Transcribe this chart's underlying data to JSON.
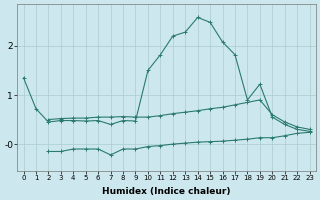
{
  "xlabel": "Humidex (Indice chaleur)",
  "background_color": "#cce8ee",
  "grid_color": "#aacccc",
  "line_color": "#2a7a6e",
  "x": [
    0,
    1,
    2,
    3,
    4,
    5,
    6,
    7,
    8,
    9,
    10,
    11,
    12,
    13,
    14,
    15,
    16,
    17,
    18,
    19,
    20,
    21,
    22,
    23
  ],
  "y_main": [
    1.35,
    0.72,
    0.45,
    0.48,
    0.48,
    0.47,
    0.48,
    0.4,
    0.48,
    0.47,
    1.5,
    1.82,
    2.2,
    2.28,
    2.58,
    2.48,
    2.08,
    1.82,
    0.9,
    1.22,
    0.55,
    0.4,
    0.3,
    0.26
  ],
  "y_upper": [
    null,
    null,
    0.5,
    0.52,
    0.53,
    0.53,
    0.55,
    0.55,
    0.56,
    0.55,
    0.55,
    0.58,
    0.62,
    0.65,
    0.68,
    0.72,
    0.75,
    0.8,
    0.85,
    0.9,
    0.6,
    0.45,
    0.35,
    0.3
  ],
  "y_lower": [
    null,
    null,
    -0.15,
    -0.15,
    -0.1,
    -0.1,
    -0.1,
    -0.22,
    -0.1,
    -0.1,
    -0.05,
    -0.03,
    0.0,
    0.02,
    0.04,
    0.05,
    0.06,
    0.08,
    0.1,
    0.13,
    0.13,
    0.17,
    0.22,
    0.24
  ],
  "ylim": [
    -0.55,
    2.85
  ],
  "xlim": [
    -0.5,
    23.5
  ],
  "yticks": [
    0.0,
    1.0,
    2.0
  ],
  "ytick_labels": [
    "-0",
    "1",
    "2"
  ],
  "xticks": [
    0,
    1,
    2,
    3,
    4,
    5,
    6,
    7,
    8,
    9,
    10,
    11,
    12,
    13,
    14,
    15,
    16,
    17,
    18,
    19,
    20,
    21,
    22,
    23
  ]
}
